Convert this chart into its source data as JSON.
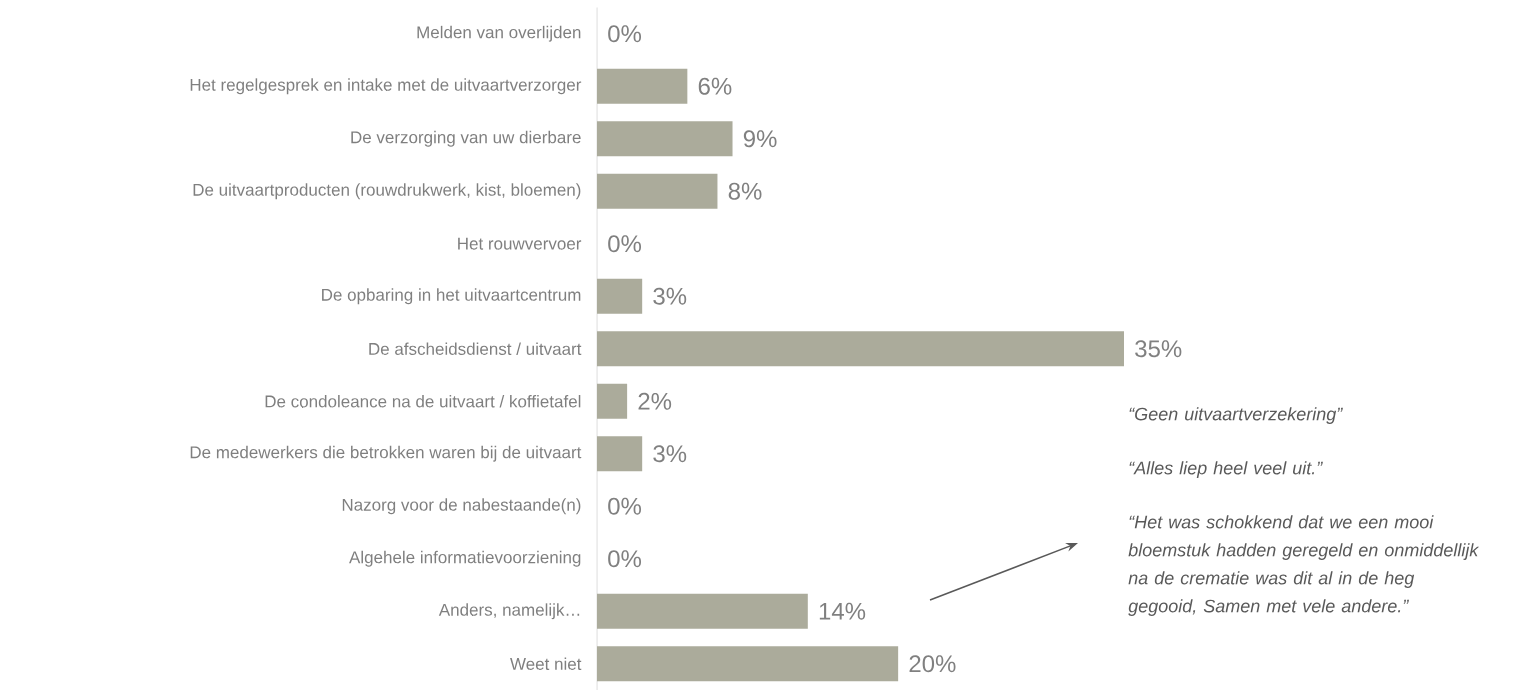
{
  "chart_data": {
    "type": "bar",
    "orientation": "horizontal",
    "categories": [
      "Melden van overlijden",
      "Het regelgesprek en intake met de uitvaartverzorger",
      "De verzorging van uw dierbare",
      "De uitvaartproducten (rouwdrukwerk, kist, bloemen)",
      "Het rouwvervoer",
      "De opbaring in het uitvaartcentrum",
      "De afscheidsdienst / uitvaart",
      "De condoleance na de uitvaart / koffietafel",
      "De medewerkers die betrokken waren bij de uitvaart",
      "Nazorg voor de nabestaande(n)",
      "Algehele informatievoorziening",
      "Anders, namelijk…",
      "Weet niet"
    ],
    "values": [
      0,
      6,
      9,
      8,
      0,
      3,
      35,
      2,
      3,
      0,
      0,
      14,
      20
    ],
    "value_labels": [
      "0%",
      "6%",
      "9%",
      "8%",
      "0%",
      "3%",
      "35%",
      "2%",
      "3%",
      "0%",
      "0%",
      "14%",
      "20%"
    ],
    "color": "#abab9b",
    "annotations": [
      "“Geen uitvaartverzekering”",
      "“Alles liep heel veel uit.”",
      "“Het was schokkend dat we een mooi bloemstuk hadden geregeld en onmiddellijk na de crematie was dit al in de heg gegooid, Samen met vele andere.”"
    ]
  }
}
